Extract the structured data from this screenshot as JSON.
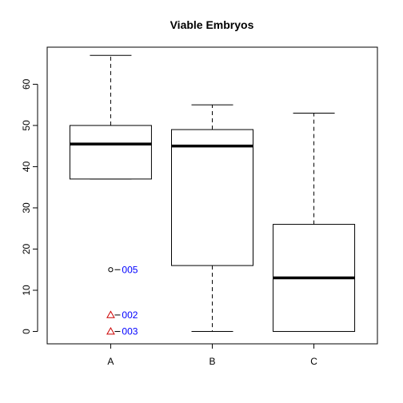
{
  "chart_data": {
    "type": "boxplot",
    "title": "Viable Embryos",
    "xlabel": "",
    "ylabel": "",
    "categories": [
      "A",
      "B",
      "C"
    ],
    "ylim": [
      -3,
      69
    ],
    "y_ticks": [
      0,
      10,
      20,
      30,
      40,
      50,
      60
    ],
    "boxes": [
      {
        "category": "A",
        "whisker_low": 37,
        "q1": 37,
        "median": 45.5,
        "q3": 50,
        "whisker_high": 67
      },
      {
        "category": "B",
        "whisker_low": 0,
        "q1": 16,
        "median": 45,
        "q3": 49,
        "whisker_high": 55
      },
      {
        "category": "C",
        "whisker_low": 0,
        "q1": 0,
        "median": 13,
        "q3": 26,
        "whisker_high": 53
      }
    ],
    "outliers": [
      {
        "category": "A",
        "value": 15,
        "label": "005",
        "marker": "circle",
        "color": "#000000",
        "label_color": "#0000FF"
      },
      {
        "category": "A",
        "value": 4,
        "label": "002",
        "marker": "triangle",
        "color": "#CC0000",
        "label_color": "#0000FF"
      },
      {
        "category": "A",
        "value": 0,
        "label": "003",
        "marker": "triangle",
        "color": "#CC0000",
        "label_color": "#0000FF"
      }
    ],
    "grid": false,
    "legend": "none"
  }
}
